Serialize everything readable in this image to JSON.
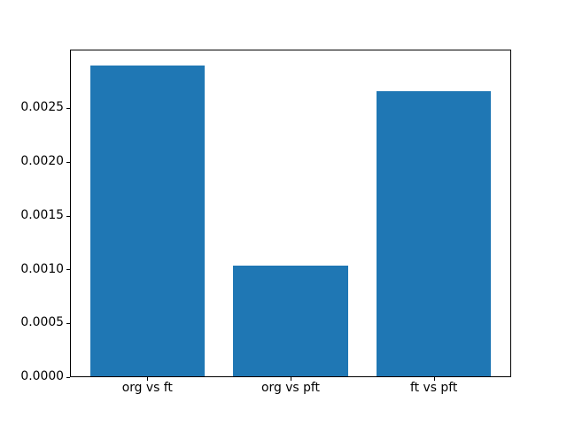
{
  "chart_data": {
    "type": "bar",
    "title": "",
    "xlabel": "",
    "ylabel": "",
    "categories": [
      "org vs ft",
      "org vs pft",
      "ft vs pft"
    ],
    "values": [
      0.0029,
      0.00104,
      0.00266
    ],
    "bar_color": "#1f77b4",
    "bar_width": 0.8,
    "xlim": [
      -0.54,
      2.54
    ],
    "ylim": [
      0,
      0.003045
    ],
    "yticks": [
      0.0,
      0.0005,
      0.001,
      0.0015,
      0.002,
      0.0025
    ],
    "ytick_labels": [
      "0.0000",
      "0.0005",
      "0.0010",
      "0.0015",
      "0.0020",
      "0.0025"
    ],
    "grid": false,
    "legend": false,
    "spine_color": "#000000",
    "background_color": "#ffffff"
  }
}
